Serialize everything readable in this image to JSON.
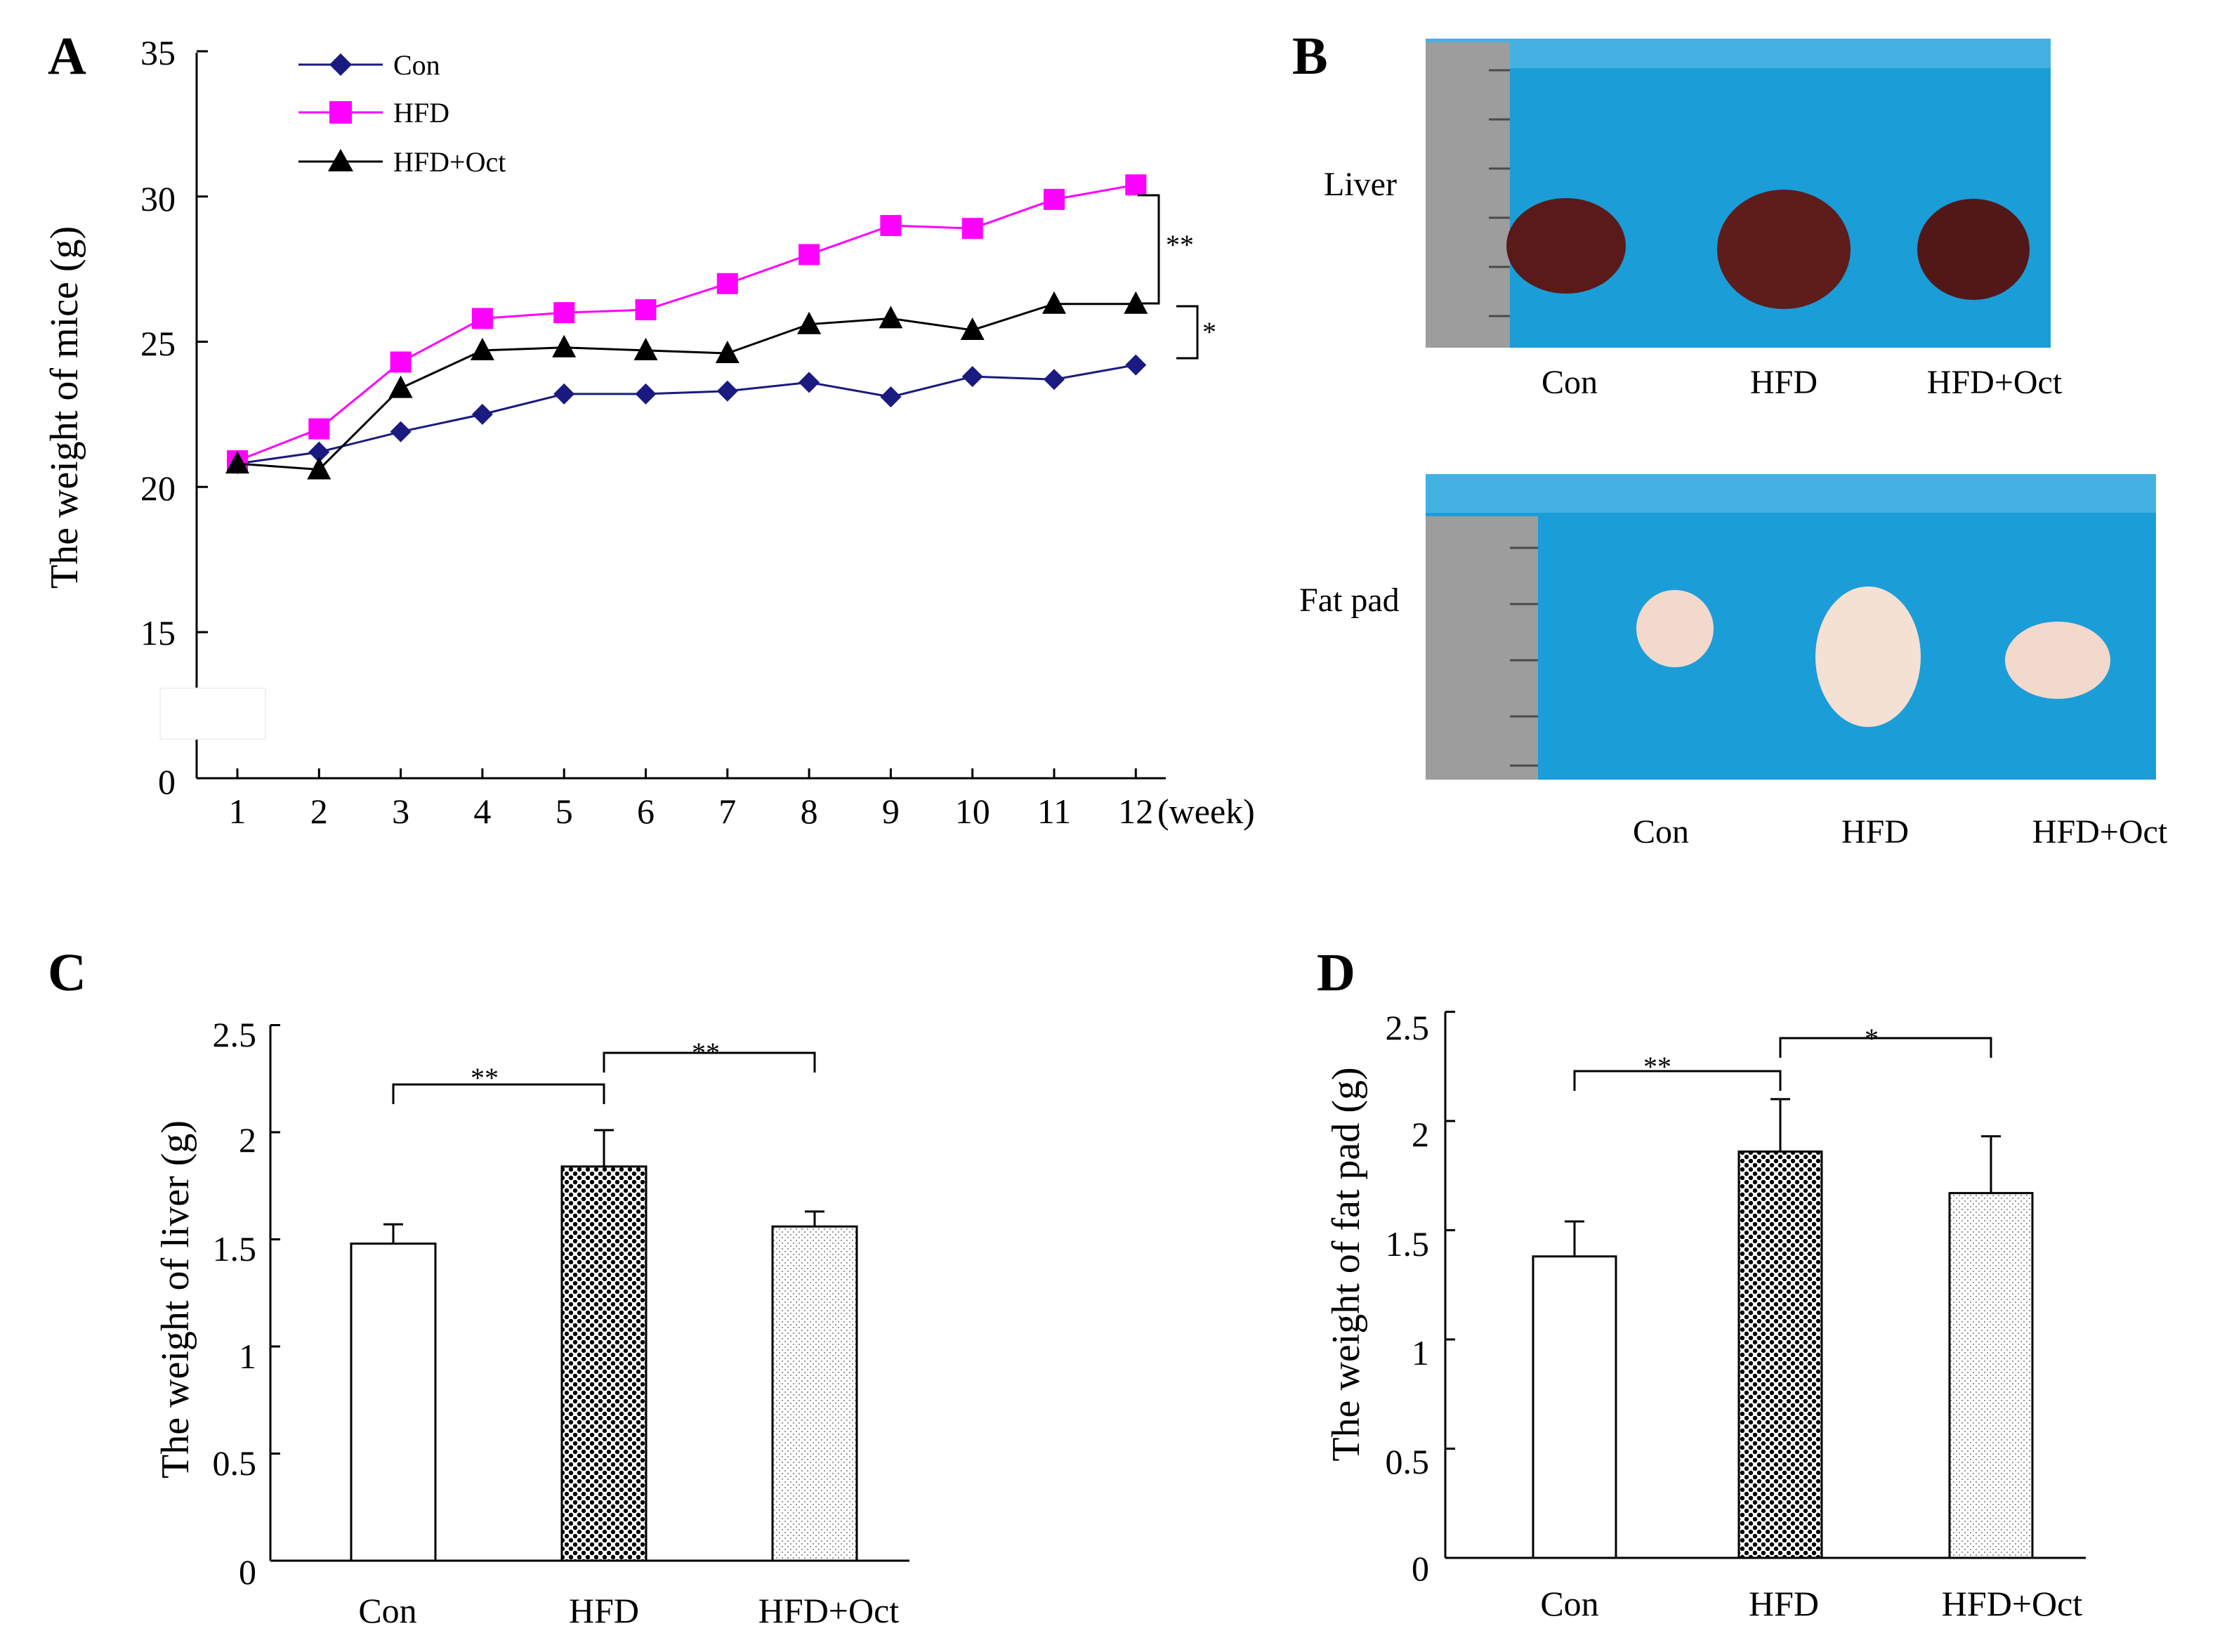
{
  "colors": {
    "con": "#1a1a80",
    "hfd": "#ff00ff",
    "oct": "#000000",
    "photo_bg": "#1b9dd8",
    "ruler": "#9d9d9d",
    "liver": "#5a1a1a",
    "fat": "#f3d9cc"
  },
  "chart_data": [
    {
      "panel": "A",
      "type": "line",
      "ylabel": "The weight of mice (g)",
      "xlabel": "(week)",
      "x": [
        1,
        2,
        3,
        4,
        5,
        6,
        7,
        8,
        9,
        10,
        11,
        12
      ],
      "xticks": [
        "1",
        "2",
        "3",
        "4",
        "5",
        "6",
        "7",
        "8",
        "9",
        "10",
        "11",
        "12"
      ],
      "yticks": [
        "35",
        "30",
        "25",
        "20",
        "15",
        "0"
      ],
      "ylim": [
        0,
        35
      ],
      "axis_break": "between 0 and 15",
      "series": [
        {
          "name": "Con",
          "marker": "diamond",
          "values": [
            20.8,
            21.2,
            21.9,
            22.5,
            23.2,
            23.2,
            23.3,
            23.6,
            23.1,
            23.8,
            23.7,
            24.2
          ]
        },
        {
          "name": "HFD",
          "marker": "square",
          "values": [
            20.9,
            22.0,
            24.3,
            25.8,
            26.0,
            26.1,
            27.0,
            28.0,
            29.0,
            28.9,
            29.9,
            30.4
          ]
        },
        {
          "name": "HFD+Oct",
          "marker": "triangle",
          "values": [
            20.8,
            20.6,
            23.4,
            24.7,
            24.8,
            24.7,
            24.6,
            25.6,
            25.8,
            25.4,
            26.3,
            26.3
          ]
        }
      ],
      "annotations": [
        "**",
        "*"
      ]
    },
    {
      "panel": "C",
      "type": "bar",
      "ylabel": "The weight of liver (g)",
      "categories": [
        "Con",
        "HFD",
        "HFD+Oct"
      ],
      "values": [
        1.48,
        1.84,
        1.56
      ],
      "errors": [
        0.09,
        0.17,
        0.07
      ],
      "yticks": [
        "2.5",
        "2",
        "1.5",
        "1",
        "0.5",
        "0"
      ],
      "ylim": [
        0,
        2.5
      ],
      "annotations": [
        "**",
        "**"
      ]
    },
    {
      "panel": "D",
      "type": "bar",
      "ylabel": "The weight of fat pad (g)",
      "categories": [
        "Con",
        "HFD",
        "HFD+Oct"
      ],
      "values": [
        1.38,
        1.86,
        1.67
      ],
      "errors": [
        0.16,
        0.24,
        0.26
      ],
      "yticks": [
        "2.5",
        "2",
        "1.5",
        "1",
        "0.5",
        "0"
      ],
      "ylim": [
        0,
        2.5
      ],
      "annotations": [
        "**",
        "*"
      ]
    }
  ],
  "panels": {
    "a": "A",
    "b": "B",
    "c": "C",
    "d": "D"
  },
  "photos": {
    "liver_label": "Liver",
    "fat_label": "Fat pad",
    "liver_groups": [
      "Con",
      "HFD",
      "HFD+Oct"
    ],
    "fat_groups": [
      "Con",
      "HFD",
      "HFD+Oct"
    ]
  }
}
